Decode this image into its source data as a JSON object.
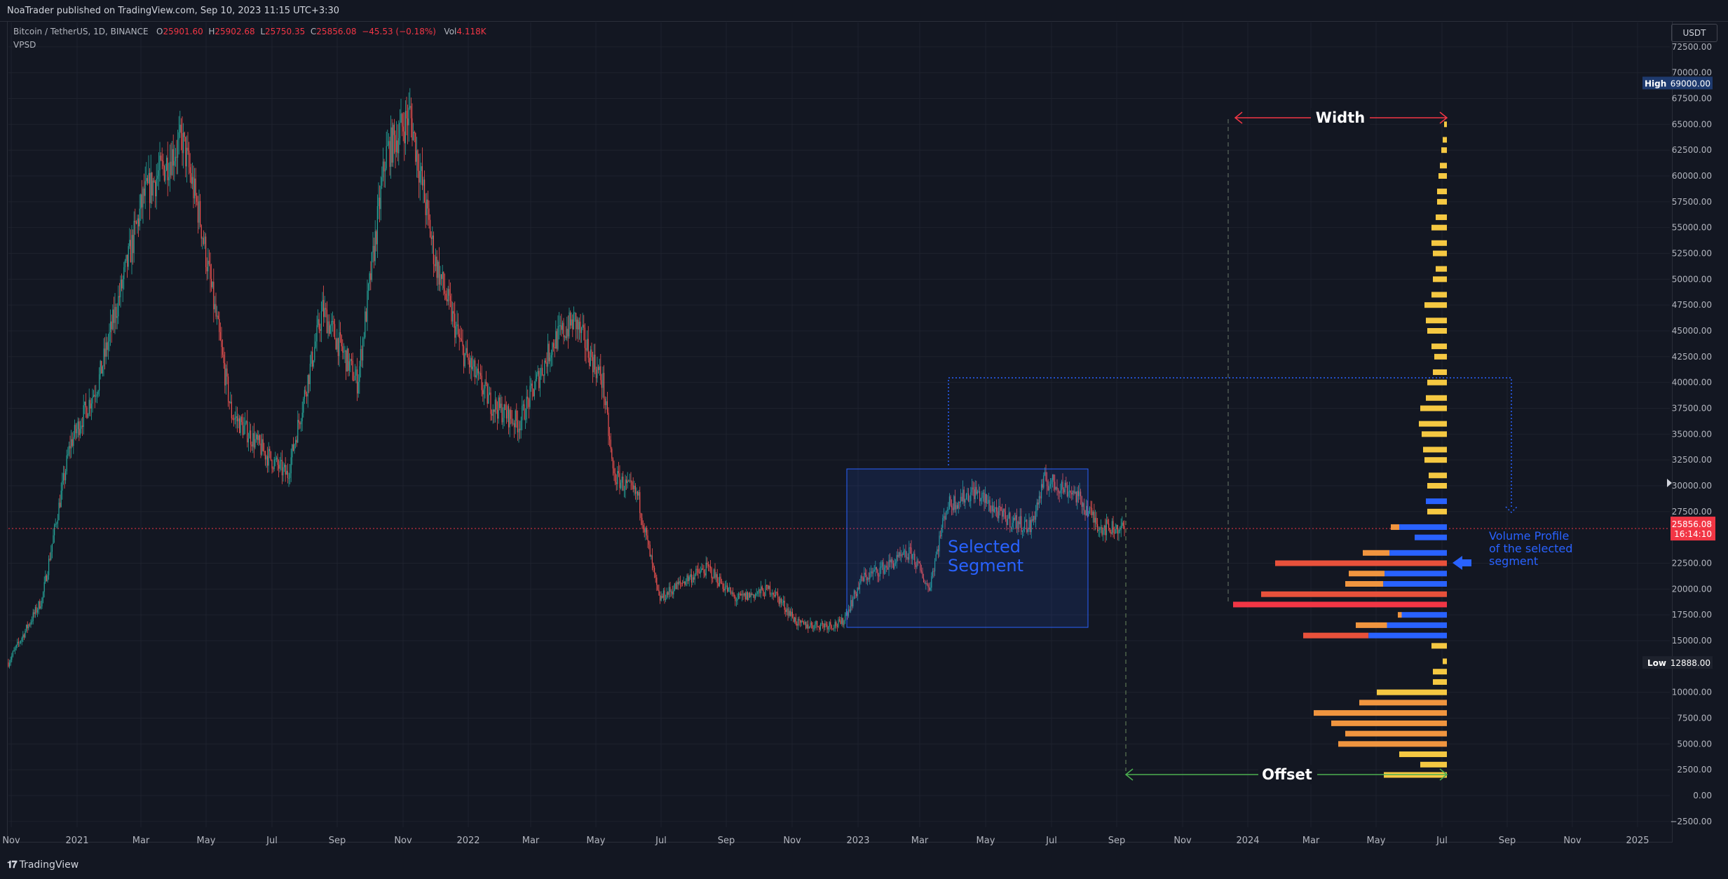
{
  "header": {
    "publisher": "NoaTrader published on TradingView.com, Sep 10, 2023 11:15 UTC+3:30"
  },
  "symbol": {
    "name": "Bitcoin / TetherUS, 1D, BINANCE",
    "o_label": "O",
    "o": "25901.60",
    "h_label": "H",
    "h": "25902.68",
    "l_label": "L",
    "l": "25750.35",
    "c_label": "C",
    "c": "25856.08",
    "change": "−45.53 (−0.18%)",
    "vol_label": "Vol",
    "vol": "4.118K",
    "indicator": "VPSD"
  },
  "currency_button": "USDT",
  "price_axis": {
    "labels": [
      "72500.00",
      "70000.00",
      "67500.00",
      "65000.00",
      "62500.00",
      "60000.00",
      "57500.00",
      "55000.00",
      "52500.00",
      "50000.00",
      "47500.00",
      "45000.00",
      "42500.00",
      "40000.00",
      "37500.00",
      "35000.00",
      "32500.00",
      "30000.00",
      "27500.00",
      "22500.00",
      "20000.00",
      "17500.00",
      "15000.00",
      "10000.00",
      "7500.00",
      "5000.00",
      "2500.00",
      "0.00",
      "−2500.00"
    ],
    "high_label": "High",
    "high_value": "69000.00",
    "low_label": "Low",
    "low_value": "12888.00",
    "last_price": "25856.08",
    "countdown": "16:14:10"
  },
  "time_axis": {
    "labels": [
      "Nov",
      "2021",
      "Mar",
      "May",
      "Jul",
      "Sep",
      "Nov",
      "2022",
      "Mar",
      "May",
      "Jul",
      "Sep",
      "Nov",
      "2023",
      "Mar",
      "May",
      "Jul",
      "Sep",
      "Nov",
      "2024",
      "Mar",
      "May",
      "Jul",
      "Sep",
      "Nov",
      "2025"
    ]
  },
  "annotations": {
    "width_label": "Width",
    "offset_label": "Offset",
    "segment_line1": "Selected",
    "segment_line2": "Segment",
    "vp_line1": "Volume Profile",
    "vp_line2": "of the selected",
    "vp_line3": "segment"
  },
  "colors": {
    "background": "#131722",
    "up": "#26a69a",
    "down": "#ef5350",
    "vp_yellow": "#f5c842",
    "vp_orange": "#f0953f",
    "vp_red": "#e8513b",
    "vp_blue": "#2962ff",
    "segment": "#2962ff",
    "width_arrow": "#f23645",
    "offset_arrow": "#4caf50"
  },
  "footer": {
    "brand": "TradingView",
    "logo_icon": "tradingview-logo-icon"
  }
}
